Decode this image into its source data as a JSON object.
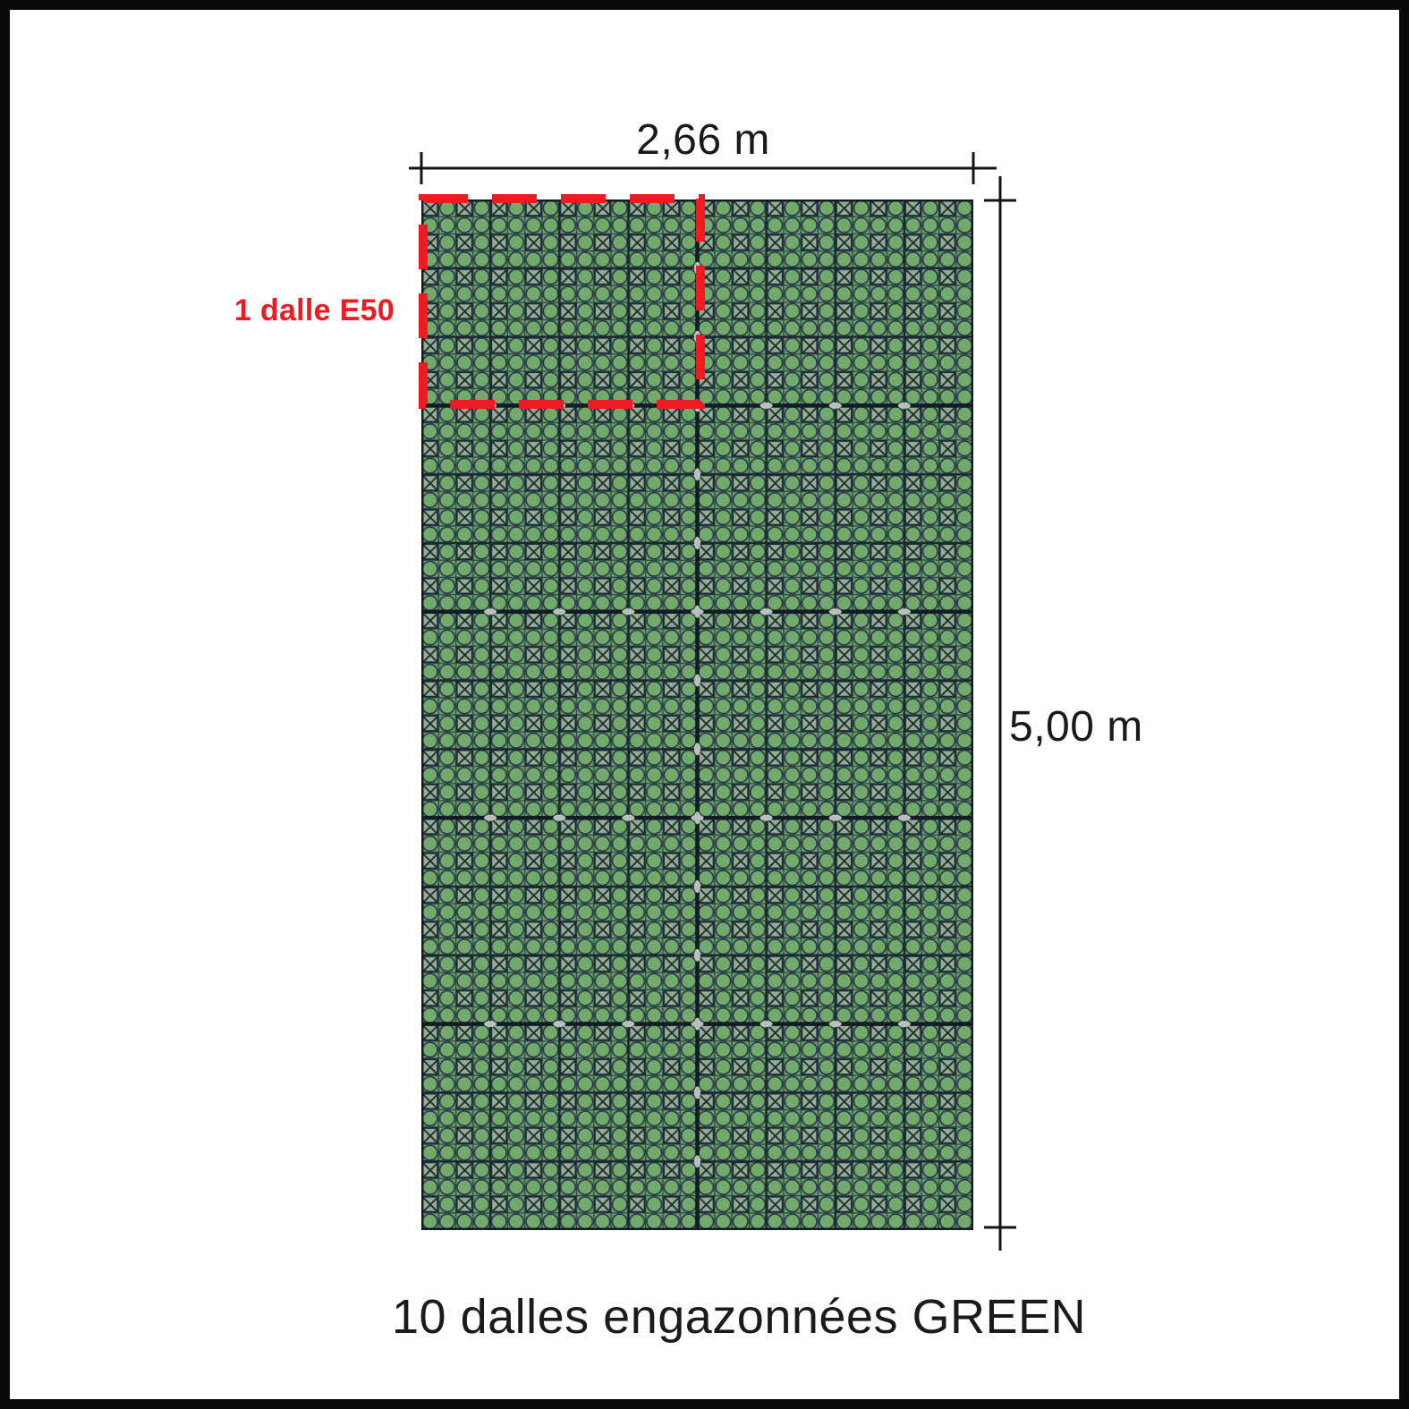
{
  "diagram": {
    "width_label": "2,66 m",
    "height_label": "5,00 m",
    "unit_tile_label": "1 dalle E50",
    "caption": "10 dalles engazonnées GREEN"
  },
  "colors": {
    "accent_red": "#ee1b22",
    "grass_green": "#67a464",
    "grid_dark": "#1d2835",
    "dalle_line_dark": "#131b27",
    "text_dark": "#1a1a1a",
    "frame_black": "#0a0a0a"
  }
}
